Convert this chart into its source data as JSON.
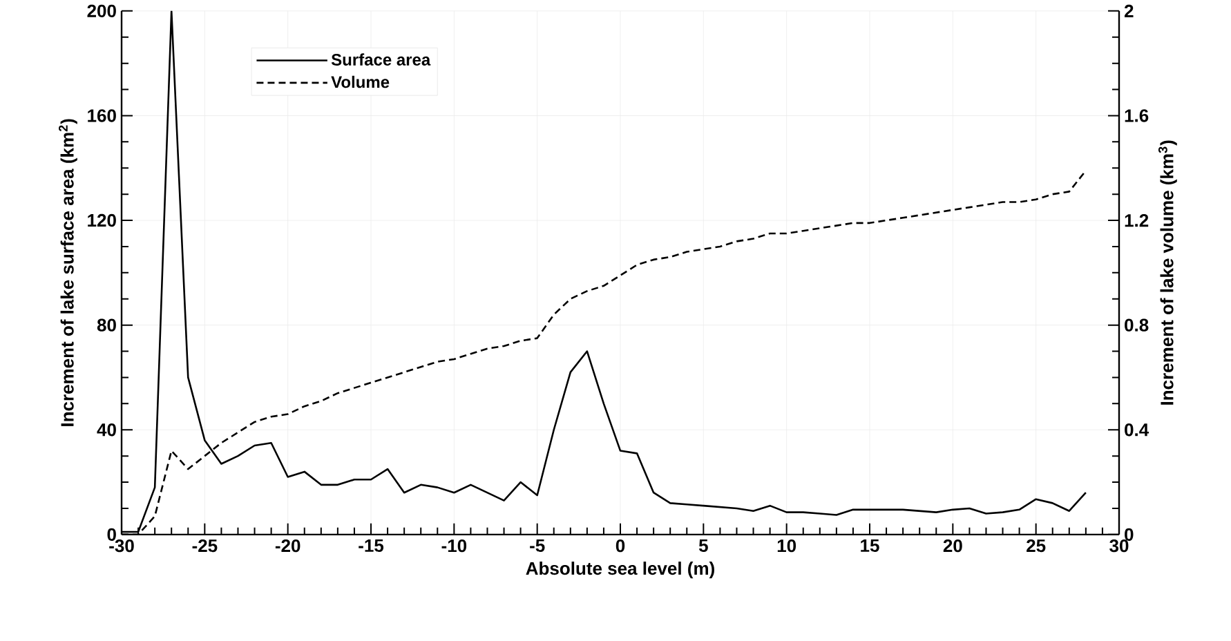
{
  "chart_data": {
    "type": "line",
    "xlabel": "Absolute sea level (m)",
    "ylabel": "Increment of lake surface area (km$^{2}$)",
    "y2label": "Increment of lake volume (km$^{3}$)",
    "x": [
      -30,
      -29,
      -28,
      -27,
      -26,
      -25,
      -24,
      -23,
      -22,
      -21,
      -20,
      -19,
      -18,
      -17,
      -16,
      -15,
      -14,
      -13,
      -12,
      -11,
      -10,
      -9,
      -8,
      -7,
      -6,
      -5,
      -4,
      -3,
      -2,
      -1,
      0,
      1,
      2,
      3,
      4,
      5,
      6,
      7,
      8,
      9,
      10,
      11,
      12,
      13,
      14,
      15,
      16,
      17,
      18,
      19,
      20,
      21,
      22,
      23,
      24,
      25,
      26,
      27,
      28
    ],
    "series": [
      {
        "name": "Surface area",
        "color": "#000000",
        "line_style": "solid",
        "values": [
          1,
          1,
          18,
          200,
          60,
          36,
          27,
          30,
          34,
          35,
          22,
          24,
          19,
          19,
          21,
          21,
          25,
          16,
          19,
          18,
          16,
          19,
          16,
          13,
          20,
          15,
          40,
          62,
          70,
          50,
          32,
          31,
          16,
          12,
          11.5,
          11,
          10.5,
          10,
          9,
          11,
          8.5,
          8.5,
          8,
          7.5,
          9.5,
          9.5,
          9.5,
          9.5,
          9,
          8.5,
          9.5,
          10,
          8,
          8.5,
          9.5,
          13.5,
          12,
          9,
          16
        ]
      },
      {
        "name": "Volume",
        "color": "#000000",
        "line_style": "dashed",
        "axis": "y2",
        "values": [
          0,
          0,
          0.07,
          0.32,
          0.25,
          0.3,
          0.35,
          0.39,
          0.43,
          0.45,
          0.46,
          0.49,
          0.51,
          0.54,
          0.56,
          0.58,
          0.6,
          0.62,
          0.64,
          0.66,
          0.67,
          0.69,
          0.71,
          0.72,
          0.74,
          0.75,
          0.84,
          0.9,
          0.93,
          0.95,
          0.99,
          1.03,
          1.05,
          1.06,
          1.08,
          1.09,
          1.1,
          1.12,
          1.13,
          1.15,
          1.15,
          1.16,
          1.17,
          1.18,
          1.19,
          1.19,
          1.2,
          1.21,
          1.22,
          1.23,
          1.24,
          1.25,
          1.26,
          1.27,
          1.27,
          1.28,
          1.3,
          1.31,
          1.39
        ]
      }
    ],
    "xlim": [
      -30,
      30
    ],
    "xticks": [
      -30,
      -25,
      -20,
      -15,
      -10,
      -5,
      0,
      5,
      10,
      15,
      20,
      25,
      30
    ],
    "ylim": [
      0,
      200
    ],
    "yticks": [
      0,
      40,
      80,
      120,
      160,
      200
    ],
    "y2lim": [
      0,
      2
    ],
    "y2ticks": [
      0,
      0.4,
      0.8,
      1.2,
      1.6,
      2
    ],
    "grid": true,
    "legend": "top left"
  }
}
